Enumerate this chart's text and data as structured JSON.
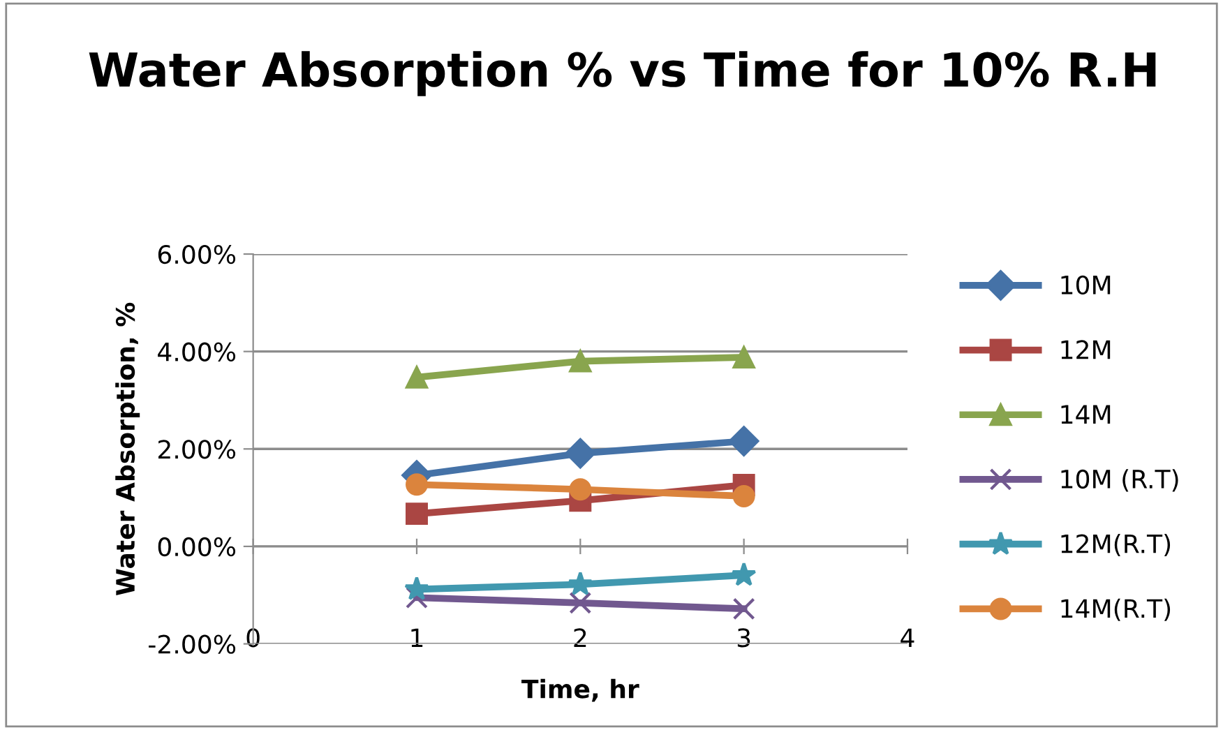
{
  "chart_data": {
    "type": "line",
    "title": "Water Absorption % vs Time for 10% R.H",
    "xlabel": "Time, hr",
    "ylabel": "Water Absorption, %",
    "x": [
      1,
      2,
      3
    ],
    "series": [
      {
        "name": "10M",
        "color": "#4572a7",
        "marker": "diamond",
        "values": [
          1.46,
          1.91,
          2.16
        ]
      },
      {
        "name": "12M",
        "color": "#aa4643",
        "marker": "square",
        "values": [
          0.67,
          0.94,
          1.26
        ]
      },
      {
        "name": "14M",
        "color": "#89a54e",
        "marker": "triangle",
        "values": [
          3.47,
          3.8,
          3.88
        ]
      },
      {
        "name": "10M (R.T)",
        "color": "#71588f",
        "marker": "cross",
        "values": [
          -1.05,
          -1.16,
          -1.28
        ]
      },
      {
        "name": "12M(R.T)",
        "color": "#4198af",
        "marker": "star",
        "values": [
          -0.88,
          -0.78,
          -0.59
        ]
      },
      {
        "name": "14M(R.T)",
        "color": "#db843d",
        "marker": "circle",
        "values": [
          1.27,
          1.17,
          1.03
        ]
      }
    ],
    "xlim": [
      0,
      4
    ],
    "xticks": [
      0,
      1,
      2,
      3,
      4
    ],
    "ylim": [
      -2,
      6
    ],
    "yticks": [
      {
        "value": -2,
        "label": "-2.00%"
      },
      {
        "value": 0,
        "label": "0.00%"
      },
      {
        "value": 2,
        "label": "2.00%"
      },
      {
        "value": 4,
        "label": "4.00%"
      },
      {
        "value": 6,
        "label": "6.00%"
      }
    ],
    "grid": "y",
    "legend": "right"
  }
}
